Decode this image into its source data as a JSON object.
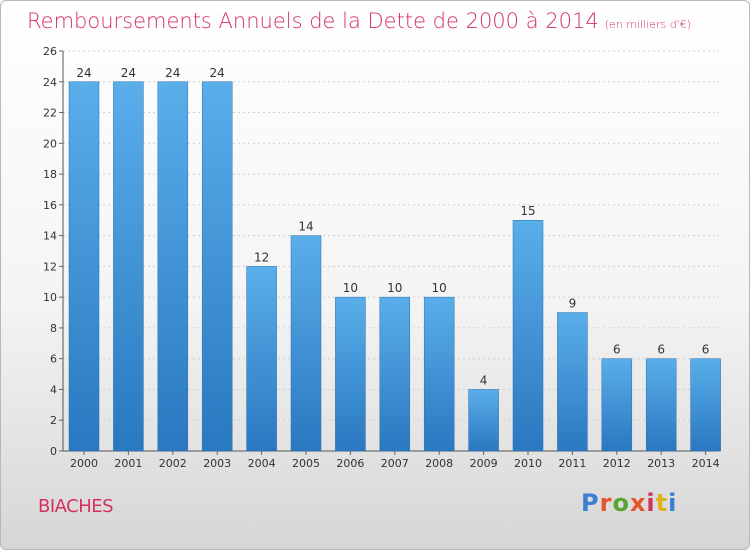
{
  "chart_data": {
    "type": "bar",
    "title": "Remboursements Annuels de la Dette de 2000 à 2014",
    "unit_note": "(en milliers d'€)",
    "categories": [
      "2000",
      "2001",
      "2002",
      "2003",
      "2004",
      "2005",
      "2006",
      "2007",
      "2008",
      "2009",
      "2010",
      "2011",
      "2012",
      "2013",
      "2014"
    ],
    "values": [
      24,
      24,
      24,
      24,
      12,
      14,
      10,
      10,
      10,
      4,
      15,
      9,
      6,
      6,
      6
    ],
    "ylim": [
      0,
      26
    ],
    "yticks": [
      0,
      2,
      4,
      6,
      8,
      10,
      12,
      14,
      16,
      18,
      20,
      22,
      24,
      26
    ],
    "xlabel": "",
    "ylabel": "",
    "bar_color": "#4a9be0",
    "title_color": "#d4315f"
  },
  "footer": {
    "location": "BIACHES",
    "logo_letters": [
      "P",
      "r",
      "o",
      "x",
      "i",
      "t",
      "i"
    ],
    "logo_colors": [
      "#3b7fd0",
      "#e8542a",
      "#5aa632",
      "#e8542a",
      "#d4315f",
      "#e0b21a",
      "#3b7fd0"
    ]
  }
}
